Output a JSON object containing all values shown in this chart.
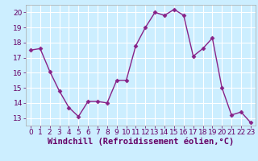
{
  "x": [
    0,
    1,
    2,
    3,
    4,
    5,
    6,
    7,
    8,
    9,
    10,
    11,
    12,
    13,
    14,
    15,
    16,
    17,
    18,
    19,
    20,
    21,
    22,
    23
  ],
  "y": [
    17.5,
    17.6,
    16.1,
    14.8,
    13.7,
    13.1,
    14.1,
    14.1,
    14.0,
    15.5,
    15.5,
    17.8,
    19.0,
    20.0,
    19.8,
    20.2,
    19.8,
    17.1,
    17.6,
    18.3,
    15.0,
    13.2,
    13.4,
    12.7
  ],
  "line_color": "#882288",
  "marker": "D",
  "markersize": 2.5,
  "linewidth": 1,
  "xlabel": "Windchill (Refroidissement éolien,°C)",
  "xlabel_fontsize": 7.5,
  "xtick_labels": [
    "0",
    "1",
    "2",
    "3",
    "4",
    "5",
    "6",
    "7",
    "8",
    "9",
    "10",
    "11",
    "12",
    "13",
    "14",
    "15",
    "16",
    "17",
    "18",
    "19",
    "20",
    "21",
    "22",
    "23"
  ],
  "ytick_labels": [
    "13",
    "14",
    "15",
    "16",
    "17",
    "18",
    "19",
    "20"
  ],
  "yticks": [
    13,
    14,
    15,
    16,
    17,
    18,
    19,
    20
  ],
  "ylim": [
    12.5,
    20.5
  ],
  "xlim": [
    -0.5,
    23.5
  ],
  "bg_color": "#cceeff",
  "grid_color": "#ffffff",
  "tick_fontsize": 6.5
}
